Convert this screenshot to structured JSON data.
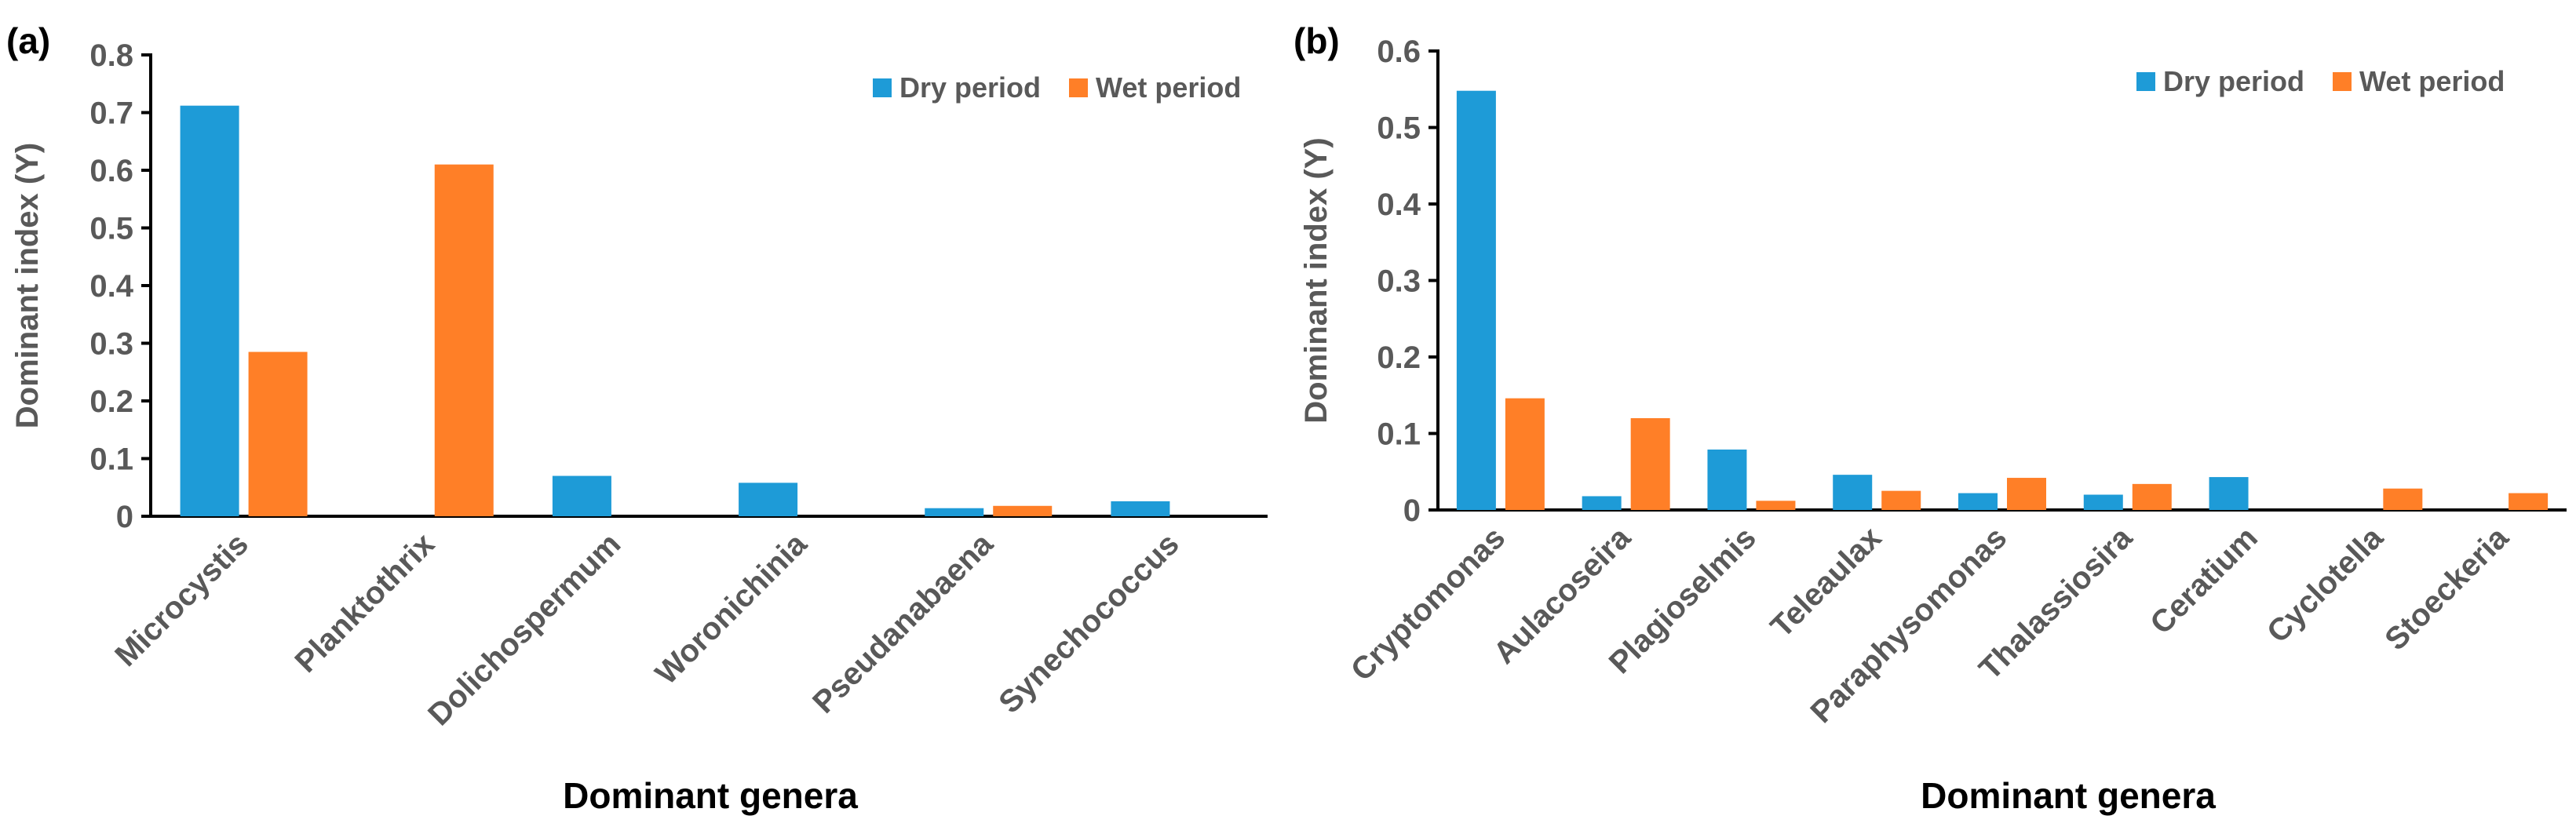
{
  "colors": {
    "dry": "#1E9BD7",
    "wet": "#FF7F27"
  },
  "chart_data": [
    {
      "type": "bar",
      "panel_label": "(a)",
      "xlabel": "Dominant genera",
      "ylabel": "Dominant index (Y)",
      "ylim": [
        0,
        0.8
      ],
      "yticks": [
        "0",
        "0.1",
        "0.2",
        "0.3",
        "0.4",
        "0.5",
        "0.6",
        "0.7",
        "0.8"
      ],
      "categories": [
        "Microcystis",
        "Planktothrix",
        "Dolichospermum",
        "Woronichinia",
        "Pseudanabaena",
        "Synechococcus"
      ],
      "series": [
        {
          "name": "Dry period",
          "color": "#1E9BD7",
          "values": [
            0.712,
            0,
            0.07,
            0.058,
            0.014,
            0.026
          ]
        },
        {
          "name": "Wet period",
          "color": "#FF7F27",
          "values": [
            0.285,
            0.61,
            0,
            0,
            0.018,
            0
          ]
        }
      ],
      "legend": "top-right"
    },
    {
      "type": "bar",
      "panel_label": "(b)",
      "xlabel": "Dominant genera",
      "ylabel": "Dominant index (Y)",
      "ylim": [
        0,
        0.6
      ],
      "yticks": [
        "0",
        "0.1",
        "0.2",
        "0.3",
        "0.4",
        "0.5",
        "0.6"
      ],
      "categories": [
        "Cryptomonas",
        "Aulacoseira",
        "Plagioselmis",
        "Teleaulax",
        "Paraphysomonas",
        "Thalassiosira",
        "Ceratium",
        "Cyclotella",
        "Stoeckeria"
      ],
      "series": [
        {
          "name": "Dry period",
          "color": "#1E9BD7",
          "values": [
            0.548,
            0.018,
            0.079,
            0.046,
            0.022,
            0.02,
            0.043,
            0,
            0
          ]
        },
        {
          "name": "Wet period",
          "color": "#FF7F27",
          "values": [
            0.146,
            0.12,
            0.012,
            0.025,
            0.042,
            0.034,
            0,
            0.028,
            0.022
          ]
        }
      ],
      "legend": "top-right"
    }
  ]
}
